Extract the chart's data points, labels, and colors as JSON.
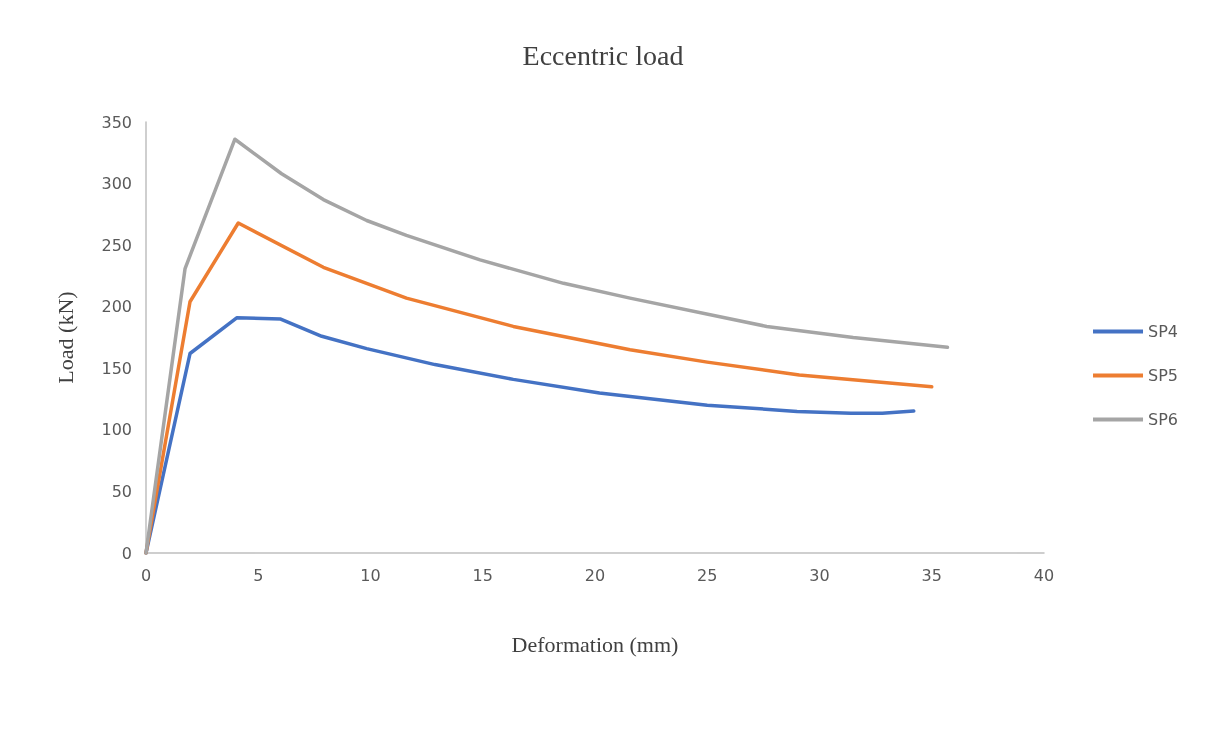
{
  "chart_data": {
    "type": "line",
    "title": "Eccentric load",
    "xlabel": "Deformation (mm)",
    "ylabel": "Load (kN)",
    "xlim": [
      0,
      40
    ],
    "xticks": [
      0,
      5,
      10,
      15,
      20,
      25,
      30,
      35,
      40
    ],
    "ylim": [
      0,
      350
    ],
    "yticks": [
      0,
      50,
      100,
      150,
      200,
      250,
      300,
      350
    ],
    "grid": false,
    "legend": "right",
    "marker": "none",
    "line_style": "solid",
    "series": [
      {
        "name": "SP4",
        "color": "#4472c4",
        "x": [
          0,
          1.96,
          4.04,
          6.0,
          7.83,
          9.83,
          12.87,
          16.36,
          20.2,
          25,
          29,
          31.4,
          32.8,
          34.2
        ],
        "values": [
          0,
          162,
          191,
          190,
          176,
          166,
          153,
          141,
          130,
          120,
          115,
          113.5,
          113.5,
          115.3
        ]
      },
      {
        "name": "SP5",
        "color": "#ed7d31",
        "x": [
          0,
          1.96,
          4.11,
          7.9,
          11.6,
          16.36,
          21.56,
          25,
          29.1,
          35.0
        ],
        "values": [
          0,
          204,
          268,
          232,
          207,
          184,
          165,
          155,
          144.5,
          135
        ]
      },
      {
        "name": "SP6",
        "color": "#a5a5a5",
        "x": [
          0,
          1.74,
          3.96,
          6.04,
          7.9,
          9.83,
          11.6,
          14.88,
          18.6,
          21.56,
          27.65,
          31.5,
          35.7
        ],
        "values": [
          0,
          231,
          336,
          308,
          287,
          270,
          258,
          238,
          219,
          207,
          184,
          175,
          167
        ]
      }
    ]
  }
}
